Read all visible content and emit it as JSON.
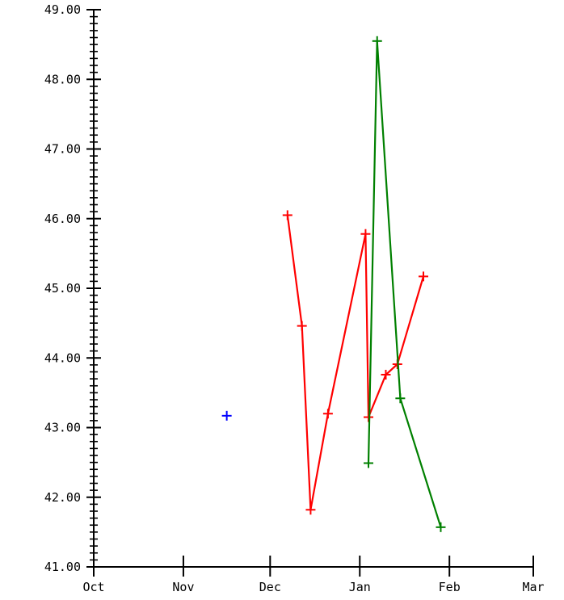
{
  "chart_data": {
    "type": "line",
    "title": "",
    "xlabel": "",
    "ylabel": "",
    "x_axis": {
      "type": "date",
      "ticks": [
        "Oct",
        "Nov",
        "Dec",
        "Jan",
        "Feb",
        "Mar"
      ],
      "range": [
        "2023-10-01",
        "2024-03-01"
      ]
    },
    "y_axis": {
      "range": [
        41.0,
        49.0
      ],
      "ticks": [
        "41.00",
        "42.00",
        "43.00",
        "44.00",
        "45.00",
        "46.00",
        "47.00",
        "48.00",
        "49.00"
      ],
      "minor_ticks_per_major": 10
    },
    "grid": false,
    "legend": "none",
    "series": [
      {
        "color": "#0000ff",
        "marker": "plus",
        "line": false,
        "points": [
          {
            "x": "2023-11-16",
            "y": 43.17
          }
        ]
      },
      {
        "color": "#ff0000",
        "marker": "plus",
        "line": true,
        "points": [
          {
            "x": "2023-12-07",
            "y": 46.05
          },
          {
            "x": "2023-12-12",
            "y": 44.46
          },
          {
            "x": "2023-12-15",
            "y": 41.82
          },
          {
            "x": "2023-12-21",
            "y": 43.2
          },
          {
            "x": "2024-01-03",
            "y": 45.78
          },
          {
            "x": "2024-01-04",
            "y": 43.15
          },
          {
            "x": "2024-01-10",
            "y": 43.76
          },
          {
            "x": "2024-01-14",
            "y": 43.91
          },
          {
            "x": "2024-01-23",
            "y": 45.17
          }
        ]
      },
      {
        "color": "#008000",
        "marker": "plus",
        "line": true,
        "points": [
          {
            "x": "2024-01-04",
            "y": 42.49
          },
          {
            "x": "2024-01-07",
            "y": 48.55
          },
          {
            "x": "2024-01-15",
            "y": 43.42
          },
          {
            "x": "2024-01-29",
            "y": 41.57
          }
        ]
      }
    ]
  }
}
